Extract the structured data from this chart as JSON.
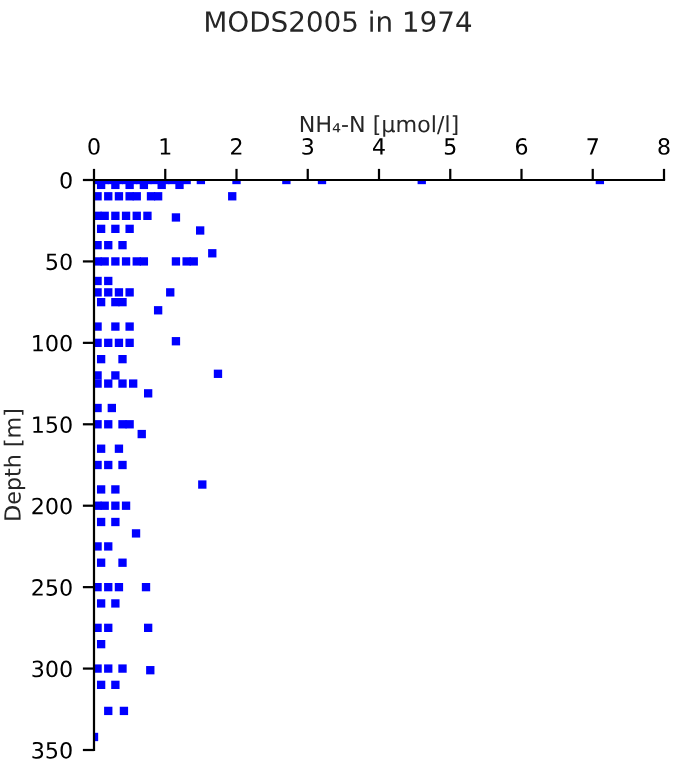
{
  "chart_data": {
    "type": "scatter",
    "title": "MODS2005 in 1974",
    "xlabel": "NH₄-N [µmol/l]",
    "ylabel": "Depth [m]",
    "xlim": [
      0,
      8
    ],
    "xticks": [
      0,
      1,
      2,
      3,
      4,
      5,
      6,
      7,
      8
    ],
    "ylim": [
      350,
      0
    ],
    "yticks": [
      0,
      50,
      100,
      150,
      200,
      250,
      300,
      350
    ],
    "grid": false,
    "marker": "square",
    "series": [
      {
        "color": "#0000ff",
        "x": [
          0.05,
          0.15,
          0.25,
          0.35,
          0.45,
          0.55,
          0.65,
          0.75,
          0.85,
          1.0,
          1.1,
          1.3,
          1.5,
          2.0,
          2.7,
          3.2,
          4.6,
          7.1,
          0.1,
          0.3,
          0.5,
          0.7,
          0.95,
          1.2,
          0.05,
          0.2,
          0.35,
          0.5,
          0.6,
          0.8,
          0.9,
          1.94,
          0.05,
          0.15,
          0.3,
          0.45,
          0.6,
          0.75,
          1.15,
          0.1,
          0.3,
          0.5,
          1.49,
          0.05,
          0.2,
          0.4,
          0.05,
          0.15,
          0.3,
          0.45,
          0.6,
          0.7,
          1.15,
          1.3,
          1.4,
          1.66,
          0.05,
          0.2,
          0.05,
          0.2,
          0.35,
          0.5,
          1.07,
          0.1,
          0.3,
          0.4,
          0.9,
          0.05,
          0.3,
          0.5,
          0.05,
          0.2,
          0.35,
          0.5,
          1.15,
          0.1,
          0.4,
          1.74,
          0.05,
          0.3,
          0.05,
          0.2,
          0.4,
          0.55,
          0.76,
          0.05,
          0.25,
          0.05,
          0.2,
          0.4,
          0.5,
          0.67,
          0.1,
          0.35,
          0.05,
          0.2,
          0.4,
          1.52,
          0.1,
          0.3,
          0.05,
          0.15,
          0.3,
          0.45,
          0.1,
          0.3,
          0.59,
          0.05,
          0.2,
          0.1,
          0.4,
          0.05,
          0.2,
          0.35,
          0.73,
          0.1,
          0.3,
          0.05,
          0.2,
          0.76,
          0.1,
          0.05,
          0.2,
          0.4,
          0.79,
          0.1,
          0.3,
          0.2,
          0.42,
          0.0
        ],
        "values": [
          0,
          0,
          0,
          0,
          0,
          0,
          0,
          0,
          0,
          0,
          0,
          0,
          0,
          0,
          0,
          0,
          0,
          0,
          3,
          3,
          3,
          3,
          3,
          3,
          10,
          10,
          10,
          10,
          10,
          10,
          10,
          10,
          22,
          22,
          22,
          22,
          22,
          22,
          23,
          30,
          30,
          30,
          31,
          40,
          40,
          40,
          50,
          50,
          50,
          50,
          50,
          50,
          50,
          50,
          50,
          45,
          62,
          62,
          69,
          69,
          69,
          69,
          69,
          75,
          75,
          75,
          80,
          90,
          90,
          90,
          100,
          100,
          100,
          100,
          99,
          110,
          110,
          119,
          120,
          120,
          125,
          125,
          125,
          125,
          131,
          140,
          140,
          150,
          150,
          150,
          150,
          156,
          165,
          165,
          175,
          175,
          175,
          187,
          190,
          190,
          200,
          200,
          200,
          200,
          210,
          210,
          217,
          225,
          225,
          235,
          235,
          250,
          250,
          250,
          250,
          260,
          260,
          275,
          275,
          275,
          285,
          300,
          300,
          300,
          301,
          310,
          310,
          326,
          326,
          342
        ]
      }
    ]
  }
}
